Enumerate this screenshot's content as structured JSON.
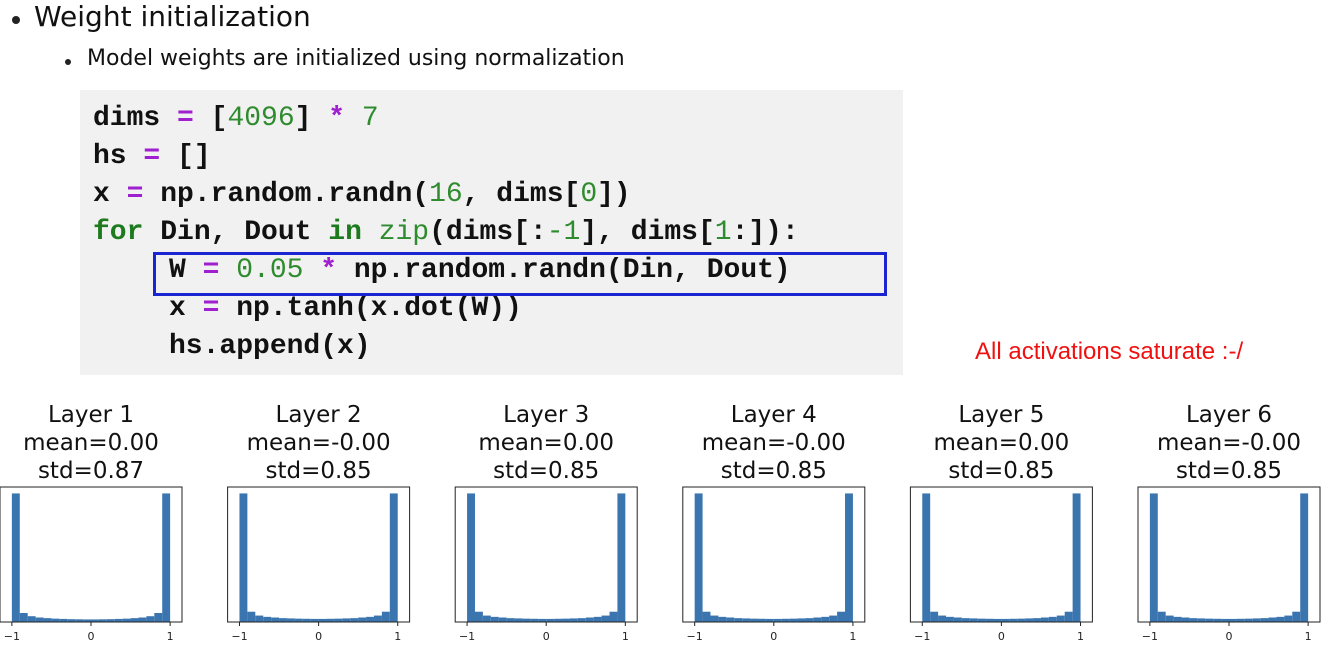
{
  "bullets": {
    "title": "Weight initialization",
    "sub": "Model weights are initialized using normalization"
  },
  "code": {
    "lines": [
      [
        "dims ",
        "=",
        " [",
        "4096",
        "] ",
        "* ",
        "7"
      ],
      [
        "hs ",
        "=",
        " []"
      ],
      [
        "x ",
        "=",
        " np.random.randn(",
        "16",
        ", dims[",
        "0",
        "])"
      ],
      [
        "for",
        " Din, Dout ",
        "in ",
        "zip",
        "(dims[:",
        "-1",
        "], dims[",
        "1",
        ":]):"
      ],
      [
        "W ",
        "= ",
        "0.05 ",
        "*",
        " np.random.randn(Din, Dout)"
      ],
      [
        "x ",
        "=",
        " np.tanh(x.dot(W))"
      ],
      [
        "hs.append(x)"
      ]
    ]
  },
  "annotation": "All activations saturate :-/",
  "chart_data": [
    {
      "type": "histogram",
      "title": "Layer 1",
      "subtitle": [
        "mean=0.00",
        "std=0.87"
      ],
      "color": "#3b75af",
      "bins": [
        -1,
        -0.9,
        -0.8,
        -0.7,
        -0.6,
        -0.5,
        -0.4,
        -0.3,
        -0.2,
        -0.1,
        0,
        0.1,
        0.2,
        0.3,
        0.4,
        0.5,
        0.6,
        0.7,
        0.8,
        0.9,
        1
      ],
      "values": [
        100,
        7,
        4.5,
        3.5,
        3,
        2.6,
        2.4,
        2.2,
        2.1,
        2,
        2,
        2.1,
        2.2,
        2.4,
        2.6,
        3,
        3.5,
        4.5,
        7,
        100
      ],
      "xlim": [
        -1.15,
        1.15
      ],
      "ylim": [
        0,
        105
      ],
      "xticks": [
        {
          "value": -1,
          "label": "−1"
        },
        0,
        1
      ]
    },
    {
      "type": "histogram",
      "title": "Layer 2",
      "subtitle": [
        "mean=-0.00",
        "std=0.85"
      ],
      "color": "#3b75af",
      "bins": [
        -1,
        -0.9,
        -0.8,
        -0.7,
        -0.6,
        -0.5,
        -0.4,
        -0.3,
        -0.2,
        -0.1,
        0,
        0.1,
        0.2,
        0.3,
        0.4,
        0.5,
        0.6,
        0.7,
        0.8,
        0.9,
        1
      ],
      "values": [
        100,
        8,
        5,
        4,
        3.5,
        3,
        2.8,
        2.6,
        2.5,
        2.4,
        2.4,
        2.5,
        2.6,
        2.8,
        3,
        3.5,
        4,
        5,
        8,
        100
      ],
      "xlim": [
        -1.15,
        1.15
      ],
      "ylim": [
        0,
        105
      ],
      "xticks": [
        {
          "value": -1,
          "label": "−1"
        },
        0,
        1
      ]
    },
    {
      "type": "histogram",
      "title": "Layer 3",
      "subtitle": [
        "mean=0.00",
        "std=0.85"
      ],
      "color": "#3b75af",
      "bins": [
        -1,
        -0.9,
        -0.8,
        -0.7,
        -0.6,
        -0.5,
        -0.4,
        -0.3,
        -0.2,
        -0.1,
        0,
        0.1,
        0.2,
        0.3,
        0.4,
        0.5,
        0.6,
        0.7,
        0.8,
        0.9,
        1
      ],
      "values": [
        100,
        8,
        5,
        4,
        3.5,
        3,
        2.8,
        2.6,
        2.5,
        2.4,
        2.4,
        2.5,
        2.6,
        2.8,
        3,
        3.5,
        4,
        5,
        8,
        100
      ],
      "xlim": [
        -1.15,
        1.15
      ],
      "ylim": [
        0,
        105
      ],
      "xticks": [
        {
          "value": -1,
          "label": "−1"
        },
        0,
        1
      ]
    },
    {
      "type": "histogram",
      "title": "Layer 4",
      "subtitle": [
        "mean=-0.00",
        "std=0.85"
      ],
      "color": "#3b75af",
      "bins": [
        -1,
        -0.9,
        -0.8,
        -0.7,
        -0.6,
        -0.5,
        -0.4,
        -0.3,
        -0.2,
        -0.1,
        0,
        0.1,
        0.2,
        0.3,
        0.4,
        0.5,
        0.6,
        0.7,
        0.8,
        0.9,
        1
      ],
      "values": [
        100,
        8,
        5,
        4,
        3.5,
        3,
        2.8,
        2.6,
        2.5,
        2.4,
        2.4,
        2.5,
        2.6,
        2.8,
        3,
        3.5,
        4,
        5,
        8,
        100
      ],
      "xlim": [
        -1.15,
        1.15
      ],
      "ylim": [
        0,
        105
      ],
      "xticks": [
        {
          "value": -1,
          "label": "−1"
        },
        0,
        1
      ]
    },
    {
      "type": "histogram",
      "title": "Layer 5",
      "subtitle": [
        "mean=0.00",
        "std=0.85"
      ],
      "color": "#3b75af",
      "bins": [
        -1,
        -0.9,
        -0.8,
        -0.7,
        -0.6,
        -0.5,
        -0.4,
        -0.3,
        -0.2,
        -0.1,
        0,
        0.1,
        0.2,
        0.3,
        0.4,
        0.5,
        0.6,
        0.7,
        0.8,
        0.9,
        1
      ],
      "values": [
        100,
        8,
        5,
        4,
        3.5,
        3,
        2.8,
        2.6,
        2.5,
        2.4,
        2.4,
        2.5,
        2.6,
        2.8,
        3,
        3.5,
        4,
        5,
        8,
        100
      ],
      "xlim": [
        -1.15,
        1.15
      ],
      "ylim": [
        0,
        105
      ],
      "xticks": [
        {
          "value": -1,
          "label": "−1"
        },
        0,
        1
      ]
    },
    {
      "type": "histogram",
      "title": "Layer 6",
      "subtitle": [
        "mean=-0.00",
        "std=0.85"
      ],
      "color": "#3b75af",
      "bins": [
        -1,
        -0.9,
        -0.8,
        -0.7,
        -0.6,
        -0.5,
        -0.4,
        -0.3,
        -0.2,
        -0.1,
        0,
        0.1,
        0.2,
        0.3,
        0.4,
        0.5,
        0.6,
        0.7,
        0.8,
        0.9,
        1
      ],
      "values": [
        100,
        8,
        5,
        4,
        3.5,
        3,
        2.8,
        2.6,
        2.5,
        2.4,
        2.4,
        2.5,
        2.6,
        2.8,
        3,
        3.5,
        4,
        5,
        8,
        100
      ],
      "xlim": [
        -1.15,
        1.15
      ],
      "ylim": [
        0,
        105
      ],
      "xticks": [
        {
          "value": -1,
          "label": "−1"
        },
        0,
        1
      ]
    }
  ]
}
